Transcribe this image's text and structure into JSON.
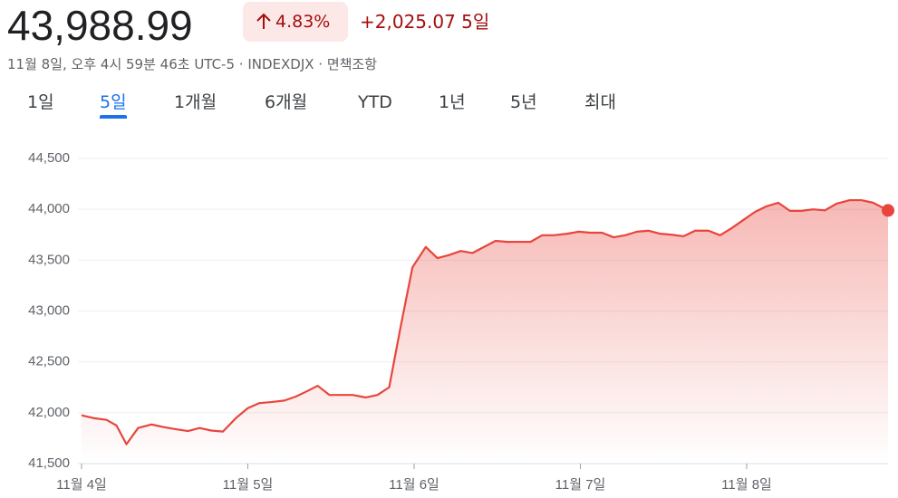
{
  "header": {
    "price": "43,988.99",
    "percent": "4.83%",
    "change": "+2,025.07 5일",
    "subtitle": "11월 8일, 오후 4시 59분 46초 UTC-5 · INDEXDJX · 면책조항"
  },
  "tabs": {
    "items": [
      "1일",
      "5일",
      "1개월",
      "6개월",
      "YTD",
      "1년",
      "5년",
      "최대"
    ],
    "selected": "5일"
  },
  "chart_data": {
    "type": "area",
    "color": "#e8453c",
    "grid": true,
    "x": [
      0,
      0.08,
      0.15,
      0.21,
      0.27,
      0.34,
      0.42,
      0.49,
      0.56,
      0.64,
      0.71,
      0.78,
      0.85,
      0.93,
      1.0,
      1.07,
      1.14,
      1.22,
      1.29,
      1.36,
      1.42,
      1.49,
      1.56,
      1.63,
      1.71,
      1.78,
      1.85,
      1.92,
      1.99,
      2.07,
      2.14,
      2.21,
      2.28,
      2.35,
      2.42,
      2.49,
      2.56,
      2.63,
      2.7,
      2.77,
      2.84,
      2.92,
      2.99,
      3.06,
      3.13,
      3.2,
      3.27,
      3.34,
      3.41,
      3.48,
      3.55,
      3.62,
      3.69,
      3.77,
      3.84,
      3.91,
      3.98,
      4.05,
      4.12,
      4.19,
      4.26,
      4.33,
      4.4,
      4.47,
      4.54,
      4.62,
      4.69,
      4.76,
      4.85
    ],
    "values": [
      41975,
      41945,
      41930,
      41875,
      41690,
      41850,
      41885,
      41860,
      41840,
      41820,
      41850,
      41825,
      41815,
      41950,
      42045,
      42095,
      42105,
      42120,
      42160,
      42215,
      42265,
      42175,
      42175,
      42175,
      42150,
      42175,
      42250,
      42855,
      43430,
      43630,
      43520,
      43550,
      43590,
      43570,
      43630,
      43690,
      43680,
      43680,
      43680,
      43745,
      43745,
      43760,
      43780,
      43770,
      43770,
      43725,
      43745,
      43780,
      43790,
      43760,
      43750,
      43735,
      43790,
      43790,
      43745,
      43815,
      43895,
      43975,
      44030,
      44065,
      43985,
      43985,
      44000,
      43990,
      44055,
      44090,
      44090,
      44065,
      43988.99
    ],
    "xlim": [
      0,
      4.85
    ],
    "xticks": [
      {
        "value": 0,
        "label": "11월 4일"
      },
      {
        "value": 1,
        "label": "11월 5일"
      },
      {
        "value": 2,
        "label": "11월 6일"
      },
      {
        "value": 3,
        "label": "11월 7일"
      },
      {
        "value": 4,
        "label": "11월 8일"
      }
    ],
    "ylim": [
      41500,
      44500
    ],
    "yticks": [
      {
        "value": 41500,
        "label": "41,500"
      },
      {
        "value": 42000,
        "label": "42,000"
      },
      {
        "value": 42500,
        "label": "42,500"
      },
      {
        "value": 43000,
        "label": "43,000"
      },
      {
        "value": 43500,
        "label": "43,500"
      },
      {
        "value": 44000,
        "label": "44,000"
      },
      {
        "value": 44500,
        "label": "44,500"
      }
    ]
  }
}
